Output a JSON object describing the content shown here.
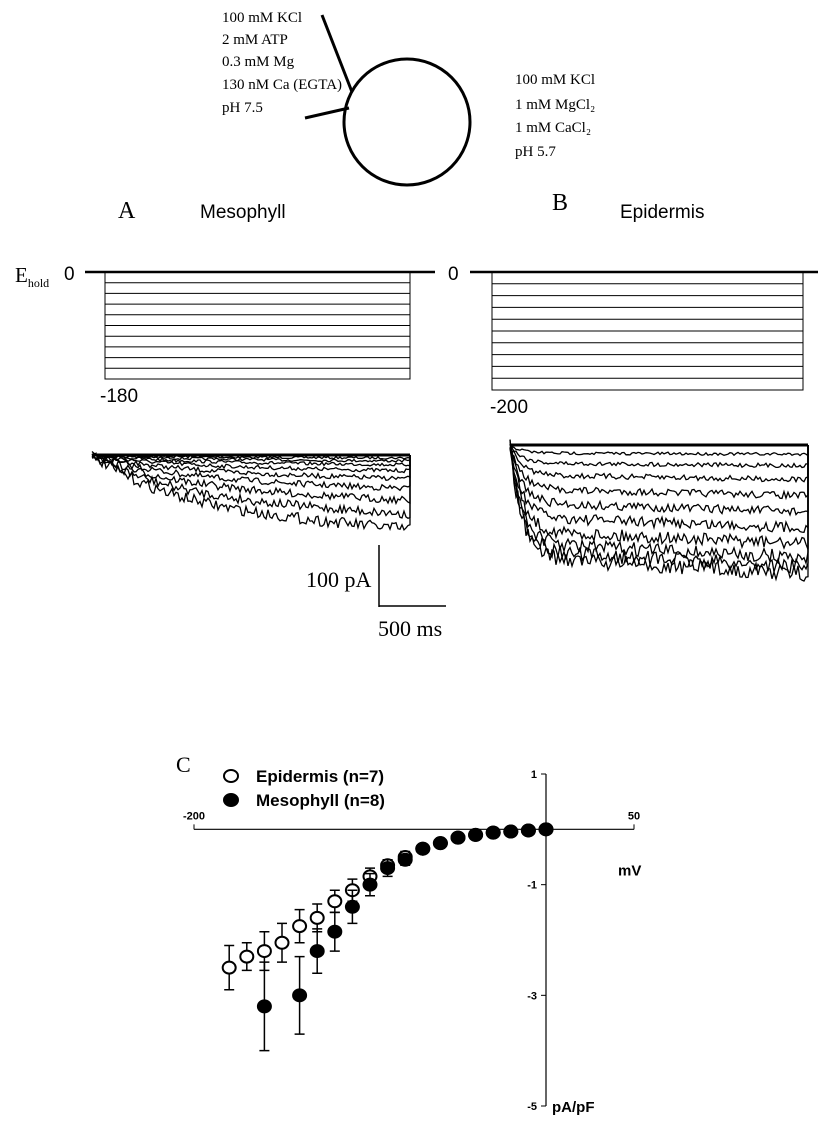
{
  "diagram": {
    "pipette_solution": [
      "100 mM KCl",
      "2 mM ATP",
      "0.3 mM Mg",
      "130 nM Ca (EGTA)",
      "pH 7.5"
    ],
    "bath_solution": [
      "100 mM KCl",
      "1 mM MgCl₂",
      "1 mM CaCl₂",
      "pH 5.7"
    ]
  },
  "panel_a": {
    "letter": "A",
    "title": "Mesophyll",
    "hold_label": "E",
    "hold_sub": "hold",
    "top_voltage": "0",
    "bottom_voltage": "-180"
  },
  "panel_b": {
    "letter": "B",
    "title": "Epidermis",
    "top_voltage": "0",
    "bottom_voltage": "-200"
  },
  "scale_bar": {
    "current": "100 pA",
    "time": "500 ms"
  },
  "chart_data": {
    "type": "scatter",
    "panel_letter": "C",
    "x_label": "mV",
    "y_label": "pA/pF",
    "x": [
      -180,
      -170,
      -160,
      -150,
      -140,
      -130,
      -120,
      -110,
      -100,
      -90,
      -80,
      -70,
      -60,
      -50,
      -40,
      -30,
      -20,
      -10,
      0
    ],
    "series": [
      {
        "name": "Epidermis (n=7)",
        "marker": "open",
        "color": "#000000",
        "values": [
          -2.5,
          -2.3,
          -2.2,
          -2.05,
          -1.75,
          -1.6,
          -1.3,
          -1.1,
          -0.85,
          -0.65,
          -0.5,
          -0.35,
          -0.25,
          -0.15,
          -0.1,
          -0.06,
          -0.04,
          -0.02,
          0
        ],
        "errors": [
          0.4,
          0.25,
          0.35,
          0.35,
          0.3,
          0.25,
          0.2,
          0.2,
          0.15,
          0.1,
          0.1,
          0.05,
          0.05,
          0.05,
          0.05,
          0.05,
          0.05,
          0.05,
          0.05
        ]
      },
      {
        "name": "Mesophyll (n=8)",
        "marker": "filled",
        "color": "#000000",
        "values": [
          null,
          null,
          -3.2,
          null,
          -3.0,
          -2.2,
          -1.85,
          -1.4,
          -1.0,
          -0.7,
          -0.55,
          -0.35,
          -0.25,
          -0.15,
          -0.1,
          -0.06,
          -0.04,
          -0.02,
          0
        ],
        "errors": [
          null,
          null,
          0.8,
          null,
          0.7,
          0.4,
          0.35,
          0.3,
          0.2,
          0.15,
          0.1,
          0.08,
          0.05,
          0.05,
          0.05,
          0.05,
          0.05,
          0.05,
          0.05
        ]
      }
    ],
    "xlim": [
      -200,
      50
    ],
    "ylim": [
      -5,
      1
    ],
    "xticks": [
      -200,
      50
    ],
    "yticks": [
      1,
      -1,
      -3,
      -5
    ]
  }
}
